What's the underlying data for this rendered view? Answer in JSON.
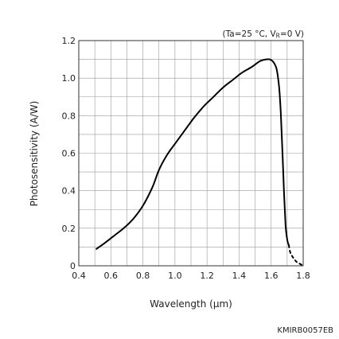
{
  "chart_data": {
    "type": "line",
    "title": "",
    "condition": {
      "prefix": "(Ta=25 °C, V",
      "sub": "R",
      "suffix": "=0 V)"
    },
    "xlabel": "Wavelength (µm)",
    "ylabel": "Photosensitivity (A/W)",
    "xlim": [
      0.4,
      1.8
    ],
    "ylim": [
      0,
      1.2
    ],
    "xticks": [
      0.4,
      0.6,
      0.8,
      1.0,
      1.2,
      1.4,
      1.6,
      1.8
    ],
    "xtick_labels": [
      "0.4",
      "0.6",
      "0.8",
      "1.0",
      "1.2",
      "1.4",
      "1.6",
      "1.8"
    ],
    "yticks": [
      0,
      0.2,
      0.4,
      0.6,
      0.8,
      1.0,
      1.2
    ],
    "ytick_labels": [
      "0",
      "0.2",
      "0.4",
      "0.6",
      "0.8",
      "1.0",
      "1.2"
    ],
    "grid": true,
    "series": [
      {
        "style": "solid",
        "x": [
          0.51,
          0.56,
          0.62,
          0.68,
          0.74,
          0.8,
          0.86,
          0.9,
          0.95,
          1.0,
          1.06,
          1.12,
          1.18,
          1.24,
          1.3,
          1.36,
          1.42,
          1.48,
          1.53,
          1.57,
          1.59,
          1.61,
          1.63,
          1.64,
          1.65,
          1.66,
          1.67,
          1.68,
          1.69,
          1.7,
          1.71
        ],
        "y": [
          0.09,
          0.12,
          0.16,
          0.2,
          0.25,
          0.32,
          0.42,
          0.51,
          0.59,
          0.65,
          0.72,
          0.79,
          0.85,
          0.9,
          0.95,
          0.99,
          1.03,
          1.06,
          1.09,
          1.1,
          1.1,
          1.09,
          1.06,
          1.02,
          0.95,
          0.82,
          0.62,
          0.4,
          0.22,
          0.14,
          0.11
        ]
      },
      {
        "style": "dashed",
        "x": [
          1.71,
          1.72,
          1.74,
          1.76,
          1.78,
          1.8
        ],
        "y": [
          0.11,
          0.07,
          0.04,
          0.02,
          0.01,
          0.0
        ]
      }
    ]
  },
  "footer_code": "KMIRB0057EB"
}
